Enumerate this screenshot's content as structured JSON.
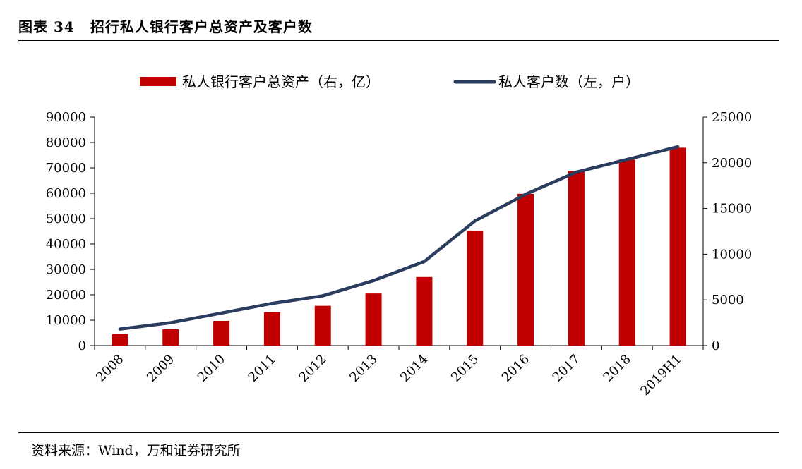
{
  "figure": {
    "label": "图表",
    "number": "34",
    "title": "招行私人银行客户总资产及客户数"
  },
  "source": "资料来源：Wind，万和证券研究所",
  "colors": {
    "bar": "#c00000",
    "line": "#2b3d5e"
  },
  "chart_data": {
    "type": "bar",
    "categories": [
      "2008",
      "2009",
      "2010",
      "2011",
      "2012",
      "2013",
      "2014",
      "2015",
      "2016",
      "2017",
      "2018",
      "2019H1"
    ],
    "series": [
      {
        "name": "私人银行客户总资产（右，亿）",
        "type": "bar",
        "axis": "right",
        "values": [
          1250,
          1780,
          2700,
          3650,
          4350,
          5700,
          7500,
          12550,
          16600,
          19100,
          20350,
          21650
        ]
      },
      {
        "name": "私人客户数（左，户）",
        "type": "line",
        "axis": "left",
        "values": [
          6500,
          9000,
          12800,
          16600,
          19600,
          25600,
          33100,
          49100,
          59600,
          68300,
          73300,
          78300
        ]
      }
    ],
    "y_left": {
      "ylim": [
        0,
        90000
      ],
      "ticks": [
        "90000",
        "80000",
        "70000",
        "60000",
        "50000",
        "40000",
        "30000",
        "20000",
        "10000",
        "0"
      ]
    },
    "y_right": {
      "ylim": [
        0,
        25000
      ],
      "ticks": [
        "25000",
        "20000",
        "15000",
        "10000",
        "5000",
        "0"
      ]
    },
    "legend_position": "top-center",
    "grid": false
  }
}
